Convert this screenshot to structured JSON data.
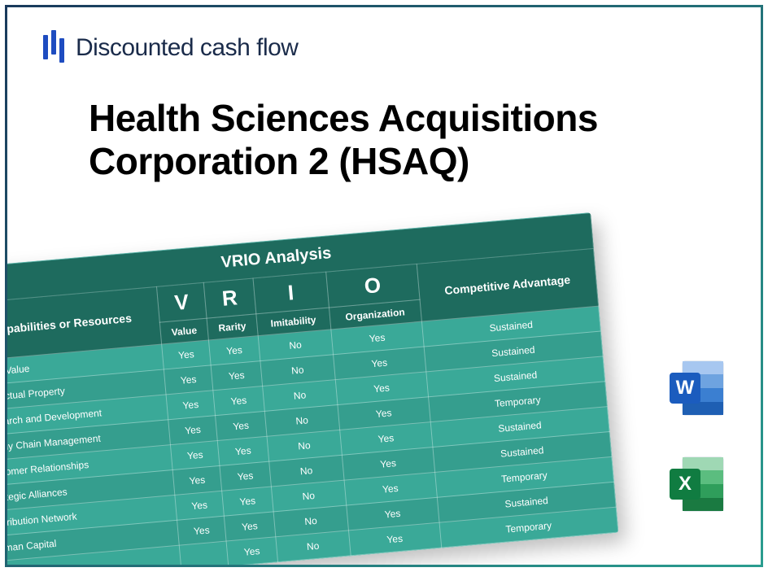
{
  "brand": {
    "name": "Discounted cash flow",
    "logo_color": "#1e4cc0"
  },
  "title": "Health Sciences Acquisitions Corporation 2 (HSAQ)",
  "icons": {
    "word_letter": "W",
    "excel_letter": "X"
  },
  "vrio": {
    "title": "VRIO Analysis",
    "row_header": "Capabilities or Resources",
    "adv_header": "Competitive Advantage",
    "letters": [
      "V",
      "R",
      "I",
      "O"
    ],
    "sub": [
      "Value",
      "Rarity",
      "Imitability",
      "Organization"
    ],
    "header_bg": "#1e6b5e",
    "body_bg": "#3aa998",
    "body_bg_alt": "#359e8e",
    "border_color": "rgba(255,255,255,0.35)",
    "text_color": "#ffffff",
    "rows": [
      {
        "name": "Brand Value",
        "v": "Yes",
        "r": "Yes",
        "i": "No",
        "o": "Yes",
        "adv": "Sustained"
      },
      {
        "name": "Intellectual Property",
        "v": "Yes",
        "r": "Yes",
        "i": "No",
        "o": "Yes",
        "adv": "Sustained"
      },
      {
        "name": "Research and Development",
        "v": "Yes",
        "r": "Yes",
        "i": "No",
        "o": "Yes",
        "adv": "Sustained"
      },
      {
        "name": "Supply Chain Management",
        "v": "Yes",
        "r": "Yes",
        "i": "No",
        "o": "Yes",
        "adv": "Temporary"
      },
      {
        "name": "Customer Relationships",
        "v": "Yes",
        "r": "Yes",
        "i": "No",
        "o": "Yes",
        "adv": "Sustained"
      },
      {
        "name": "Strategic Alliances",
        "v": "Yes",
        "r": "Yes",
        "i": "No",
        "o": "Yes",
        "adv": "Sustained"
      },
      {
        "name": "Distribution Network",
        "v": "Yes",
        "r": "Yes",
        "i": "No",
        "o": "Yes",
        "adv": "Temporary"
      },
      {
        "name": "Human Capital",
        "v": "Yes",
        "r": "Yes",
        "i": "No",
        "o": "Yes",
        "adv": "Sustained"
      },
      {
        "name": "",
        "v": "",
        "r": "Yes",
        "i": "No",
        "o": "Yes",
        "adv": "Temporary"
      }
    ]
  }
}
